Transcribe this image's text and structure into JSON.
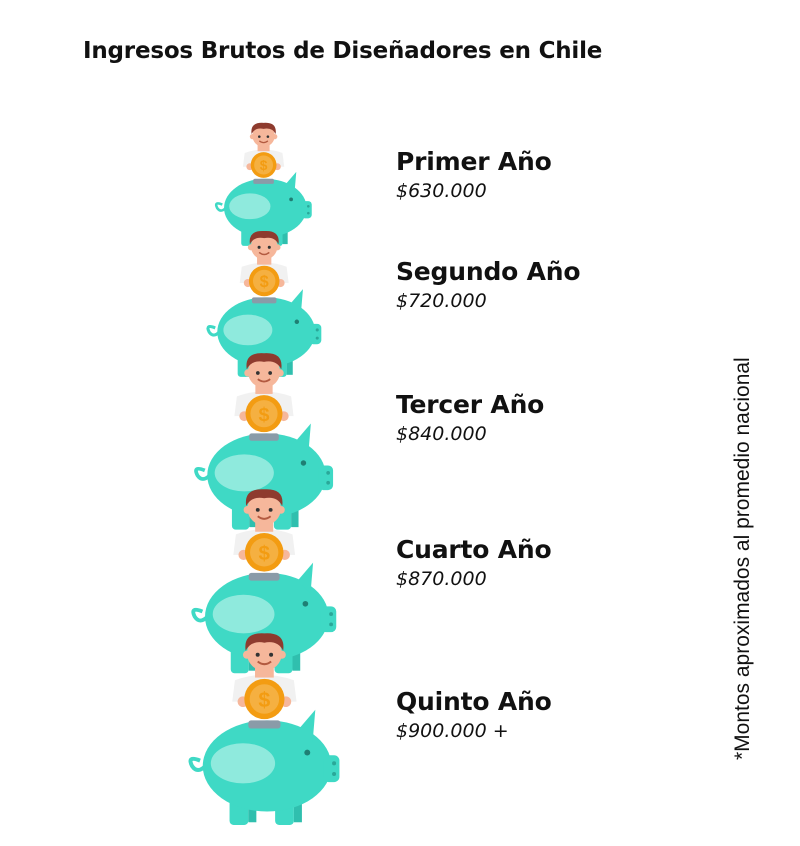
{
  "title": "Ingresos Brutos de Diseñadores en Chile",
  "note": "*Montos aproximados al promedio nacional",
  "colors": {
    "pig_body": "#3FD9C5",
    "pig_belly": "#8FEADD",
    "coin": "#F39C12",
    "coin_inner": "#F5B041",
    "hair": "#8E3B2E",
    "skin": "#F6B79B",
    "shirt": "#F1F1F1"
  },
  "chart_data": {
    "type": "pictograph",
    "categories": [
      "Primer Año",
      "Segundo Año",
      "Tercer Año",
      "Cuarto Año",
      "Quinto Año"
    ],
    "value_labels": [
      "$630.000",
      "$720.000",
      "$840.000",
      "$870.000",
      "$900.000 +"
    ],
    "values": [
      630000,
      720000,
      840000,
      870000,
      900000
    ],
    "icon": "piggy-bank-icon"
  }
}
